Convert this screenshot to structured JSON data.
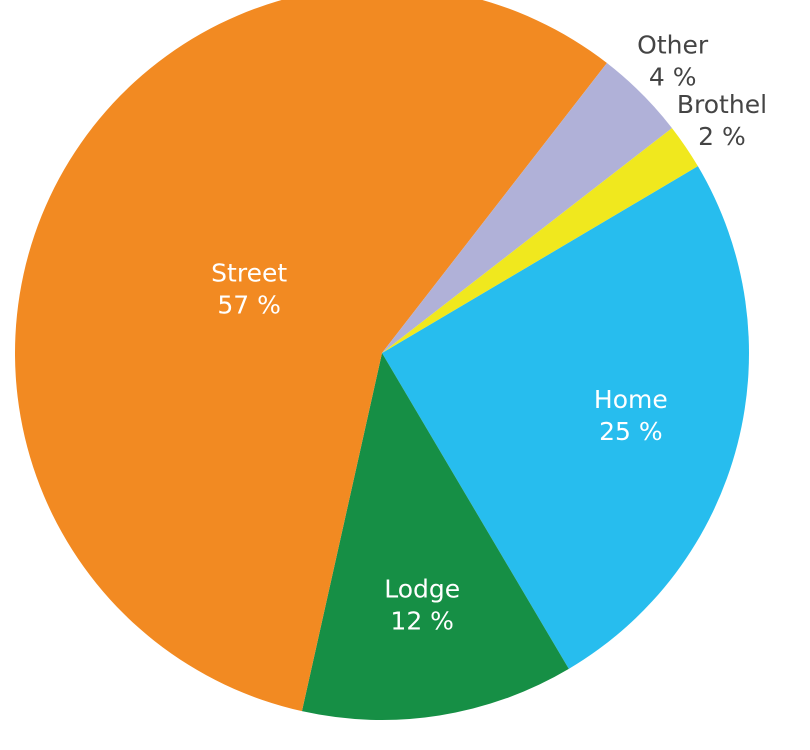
{
  "chart_data": {
    "type": "pie",
    "categories": [
      "Home",
      "Lodge",
      "Street",
      "Other",
      "Brothel"
    ],
    "values": [
      25,
      12,
      57,
      4,
      2
    ],
    "value_labels": [
      "25 %",
      "12 %",
      "57 %",
      "4 %",
      "2 %"
    ],
    "colors": [
      "#27bdee",
      "#168f45",
      "#f28a22",
      "#b0b1d8",
      "#f0e81e"
    ]
  }
}
